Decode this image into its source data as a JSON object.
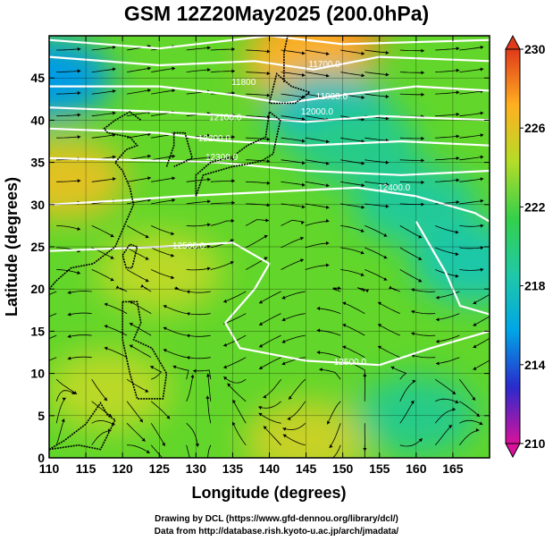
{
  "chart_data": {
    "type": "heatmap",
    "title": "GSM 12Z20May2025 (200.0hPa)",
    "xlabel": "Longitude (degrees)",
    "ylabel": "Latitude  (degrees)",
    "xlim": [
      110,
      170
    ],
    "ylim": [
      0,
      50
    ],
    "x_ticks": [
      "110",
      "115",
      "120",
      "125",
      "130",
      "135",
      "140",
      "145",
      "150",
      "155",
      "160",
      "165"
    ],
    "y_ticks": [
      "0",
      "5",
      "10",
      "15",
      "20",
      "25",
      "30",
      "35",
      "40",
      "45"
    ],
    "grid": true,
    "colorbar": {
      "placement": "right",
      "range": [
        210,
        230
      ],
      "tick_labels": [
        "210",
        "214",
        "218",
        "222",
        "226",
        "230"
      ],
      "colors": [
        "#d8129a",
        "#2a2acc",
        "#00a5e6",
        "#20c9a6",
        "#34d04a",
        "#b4dc28",
        "#ffb020",
        "#e03a1a"
      ]
    },
    "contour_labels": [
      {
        "text": "11700.0",
        "lon": 147.5,
        "lat": 46.3
      },
      {
        "text": "11800",
        "lon": 136.5,
        "lat": 44.2
      },
      {
        "text": "11900.0",
        "lon": 148.5,
        "lat": 42.5
      },
      {
        "text": "12000.0",
        "lon": 146.5,
        "lat": 40.7
      },
      {
        "text": "12100.0",
        "lon": 134.0,
        "lat": 40.0
      },
      {
        "text": "12200.0",
        "lon": 132.5,
        "lat": 37.5
      },
      {
        "text": "12300.0",
        "lon": 133.5,
        "lat": 35.3
      },
      {
        "text": "12400.0",
        "lon": 157.0,
        "lat": 31.7
      },
      {
        "text": "12500.0",
        "lon": 129.0,
        "lat": 24.8
      },
      {
        "text": "12500.0",
        "lon": 151.0,
        "lat": 11.0
      }
    ],
    "temperature_features": [
      {
        "lon": 147,
        "lat": 50,
        "value": 228.5
      },
      {
        "lon": 145,
        "lat": 47,
        "value": 227
      },
      {
        "lon": 110,
        "lat": 45,
        "value": 215.5
      },
      {
        "lon": 148,
        "lat": 41,
        "value": 217.5
      },
      {
        "lon": 152,
        "lat": 37,
        "value": 219.5
      },
      {
        "lon": 160,
        "lat": 30,
        "value": 219
      },
      {
        "lon": 168,
        "lat": 23,
        "value": 218.5
      },
      {
        "lon": 112,
        "lat": 33,
        "value": 226
      },
      {
        "lon": 125,
        "lat": 22,
        "value": 224.5
      },
      {
        "lon": 118,
        "lat": 8,
        "value": 224.5
      },
      {
        "lon": 145,
        "lat": 2,
        "value": 225
      },
      {
        "lon": 160,
        "lat": 5,
        "value": 219.5
      }
    ]
  },
  "credits": {
    "line1": "Drawing by DCL (https://www.gfd-dennou.org/library/dcl/)",
    "line2": "Data from http://database.rish.kyoto-u.ac.jp/arch/jmadata/"
  }
}
